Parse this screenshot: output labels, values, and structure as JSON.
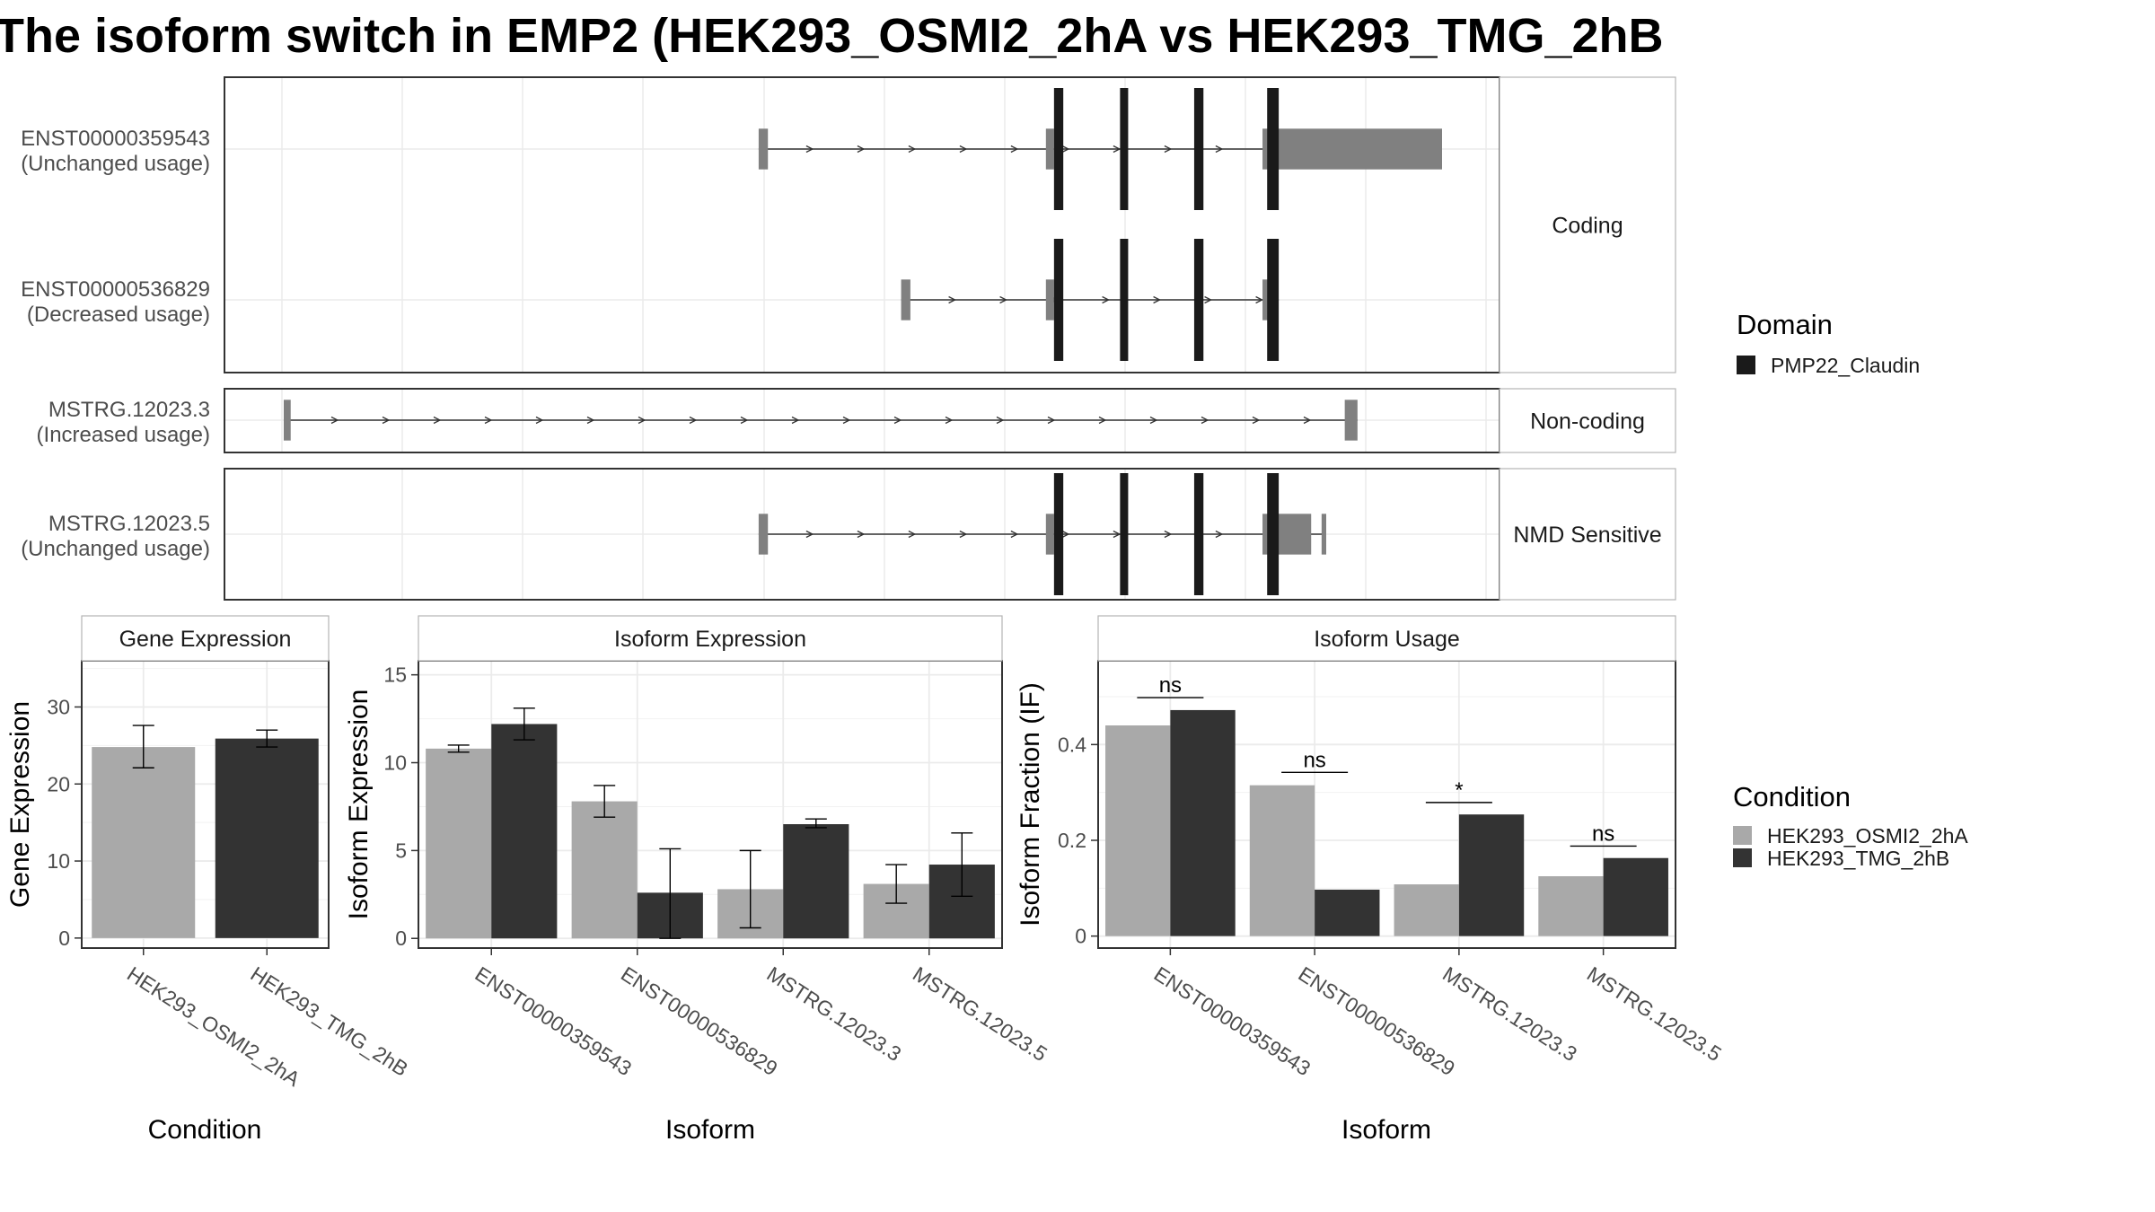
{
  "title": "The isoform switch in EMP2 (HEK293_OSMI2_2hA vs HEK293_TMG_2hB",
  "colors": {
    "cond1": "#a9a9a9",
    "cond2": "#333333",
    "domain": "#1a1a1a",
    "utr": "#808080",
    "grid": "#ebebeb",
    "frame": "#333333",
    "strip_fill": "#ffffff"
  },
  "structure": {
    "groups": [
      {
        "label": "Coding",
        "isoforms": [
          {
            "id": "ENST00000359543",
            "usage": "(Unchanged usage)",
            "utr_blocks": [
              [
                0.41,
                0.418
              ],
              [
                0.658,
                0.665
              ],
              [
                0.845,
                1.0
              ]
            ],
            "domain_blocks": [
              [
                0.665,
                0.673
              ],
              [
                0.722,
                0.729
              ],
              [
                0.786,
                0.794
              ],
              [
                0.849,
                0.859
              ]
            ]
          },
          {
            "id": "ENST00000536829",
            "usage": "(Decreased usage)",
            "utr_blocks": [
              [
                0.533,
                0.541
              ],
              [
                0.658,
                0.665
              ],
              [
                0.845,
                0.852
              ]
            ],
            "domain_blocks": [
              [
                0.665,
                0.673
              ],
              [
                0.722,
                0.729
              ],
              [
                0.786,
                0.794
              ],
              [
                0.849,
                0.859
              ]
            ]
          }
        ]
      },
      {
        "label": "Non-coding",
        "isoforms": [
          {
            "id": "MSTRG.12023.3",
            "usage": "(Increased usage)",
            "utr_blocks": [
              [
                0.0,
                0.006
              ],
              [
                0.916,
                0.927
              ]
            ],
            "domain_blocks": []
          }
        ]
      },
      {
        "label": "NMD Sensitive",
        "isoforms": [
          {
            "id": "MSTRG.12023.5",
            "usage": "(Unchanged usage)",
            "utr_blocks": [
              [
                0.41,
                0.418
              ],
              [
                0.658,
                0.665
              ],
              [
                0.845,
                0.887
              ],
              [
                0.896,
                0.9
              ]
            ],
            "domain_blocks": [
              [
                0.665,
                0.673
              ],
              [
                0.722,
                0.729
              ],
              [
                0.786,
                0.794
              ],
              [
                0.849,
                0.859
              ]
            ]
          }
        ]
      }
    ]
  },
  "legend_domain": {
    "title": "Domain",
    "items": [
      {
        "label": "PMP22_Claudin",
        "color": "#1a1a1a"
      }
    ]
  },
  "legend_condition": {
    "title": "Condition",
    "items": [
      {
        "label": "HEK293_OSMI2_2hA",
        "color": "#a9a9a9"
      },
      {
        "label": "HEK293_TMG_2hB",
        "color": "#333333"
      }
    ]
  },
  "chart_data": [
    {
      "type": "bar",
      "strip": "Gene Expression",
      "xlabel": "Condition",
      "ylabel": "Gene Expression",
      "ylim": [
        -1.3,
        36
      ],
      "yticks": [
        0,
        10,
        20,
        30
      ],
      "categories": [
        "HEK293_OSMI2_2hA",
        "HEK293_TMG_2hB"
      ],
      "series": [
        {
          "values": [
            24.8,
            25.9
          ],
          "errors": [
            [
              22.1,
              27.6
            ],
            [
              24.8,
              27.0
            ]
          ]
        }
      ]
    },
    {
      "type": "bar",
      "strip": "Isoform Expression",
      "xlabel": "Isoform",
      "ylabel": "Isoform Expression",
      "ylim": [
        -0.55,
        15.8
      ],
      "yticks": [
        0,
        5,
        10,
        15
      ],
      "categories": [
        "ENST00000359543",
        "ENST00000536829",
        "MSTRG.12023.3",
        "MSTRG.12023.5"
      ],
      "series": [
        {
          "name": "HEK293_OSMI2_2hA",
          "values": [
            10.8,
            7.8,
            2.8,
            3.1
          ],
          "errors": [
            [
              10.6,
              11.0
            ],
            [
              6.9,
              8.7
            ],
            [
              0.6,
              5.0
            ],
            [
              2.0,
              4.2
            ]
          ]
        },
        {
          "name": "HEK293_TMG_2hB",
          "values": [
            12.2,
            2.6,
            6.5,
            4.2
          ],
          "errors": [
            [
              11.3,
              13.1
            ],
            [
              0.0,
              5.1
            ],
            [
              6.3,
              6.8
            ],
            [
              2.4,
              6.0
            ]
          ]
        }
      ]
    },
    {
      "type": "bar",
      "strip": "Isoform Usage",
      "xlabel": "Isoform",
      "ylabel": "Isoform Fraction (IF)",
      "ylim": [
        -0.025,
        0.575
      ],
      "yticks": [
        0.0,
        0.2,
        0.4
      ],
      "categories": [
        "ENST00000359543",
        "ENST00000536829",
        "MSTRG.12023.3",
        "MSTRG.12023.5"
      ],
      "series": [
        {
          "name": "HEK293_OSMI2_2hA",
          "values": [
            0.44,
            0.315,
            0.108,
            0.125
          ]
        },
        {
          "name": "HEK293_TMG_2hB",
          "values": [
            0.472,
            0.097,
            0.254,
            0.163
          ]
        }
      ],
      "significance": [
        {
          "label": "ns",
          "y": 0.498
        },
        {
          "label": "ns",
          "y": 0.342
        },
        {
          "label": "*",
          "y": 0.279
        },
        {
          "label": "ns",
          "y": 0.188
        }
      ]
    }
  ]
}
